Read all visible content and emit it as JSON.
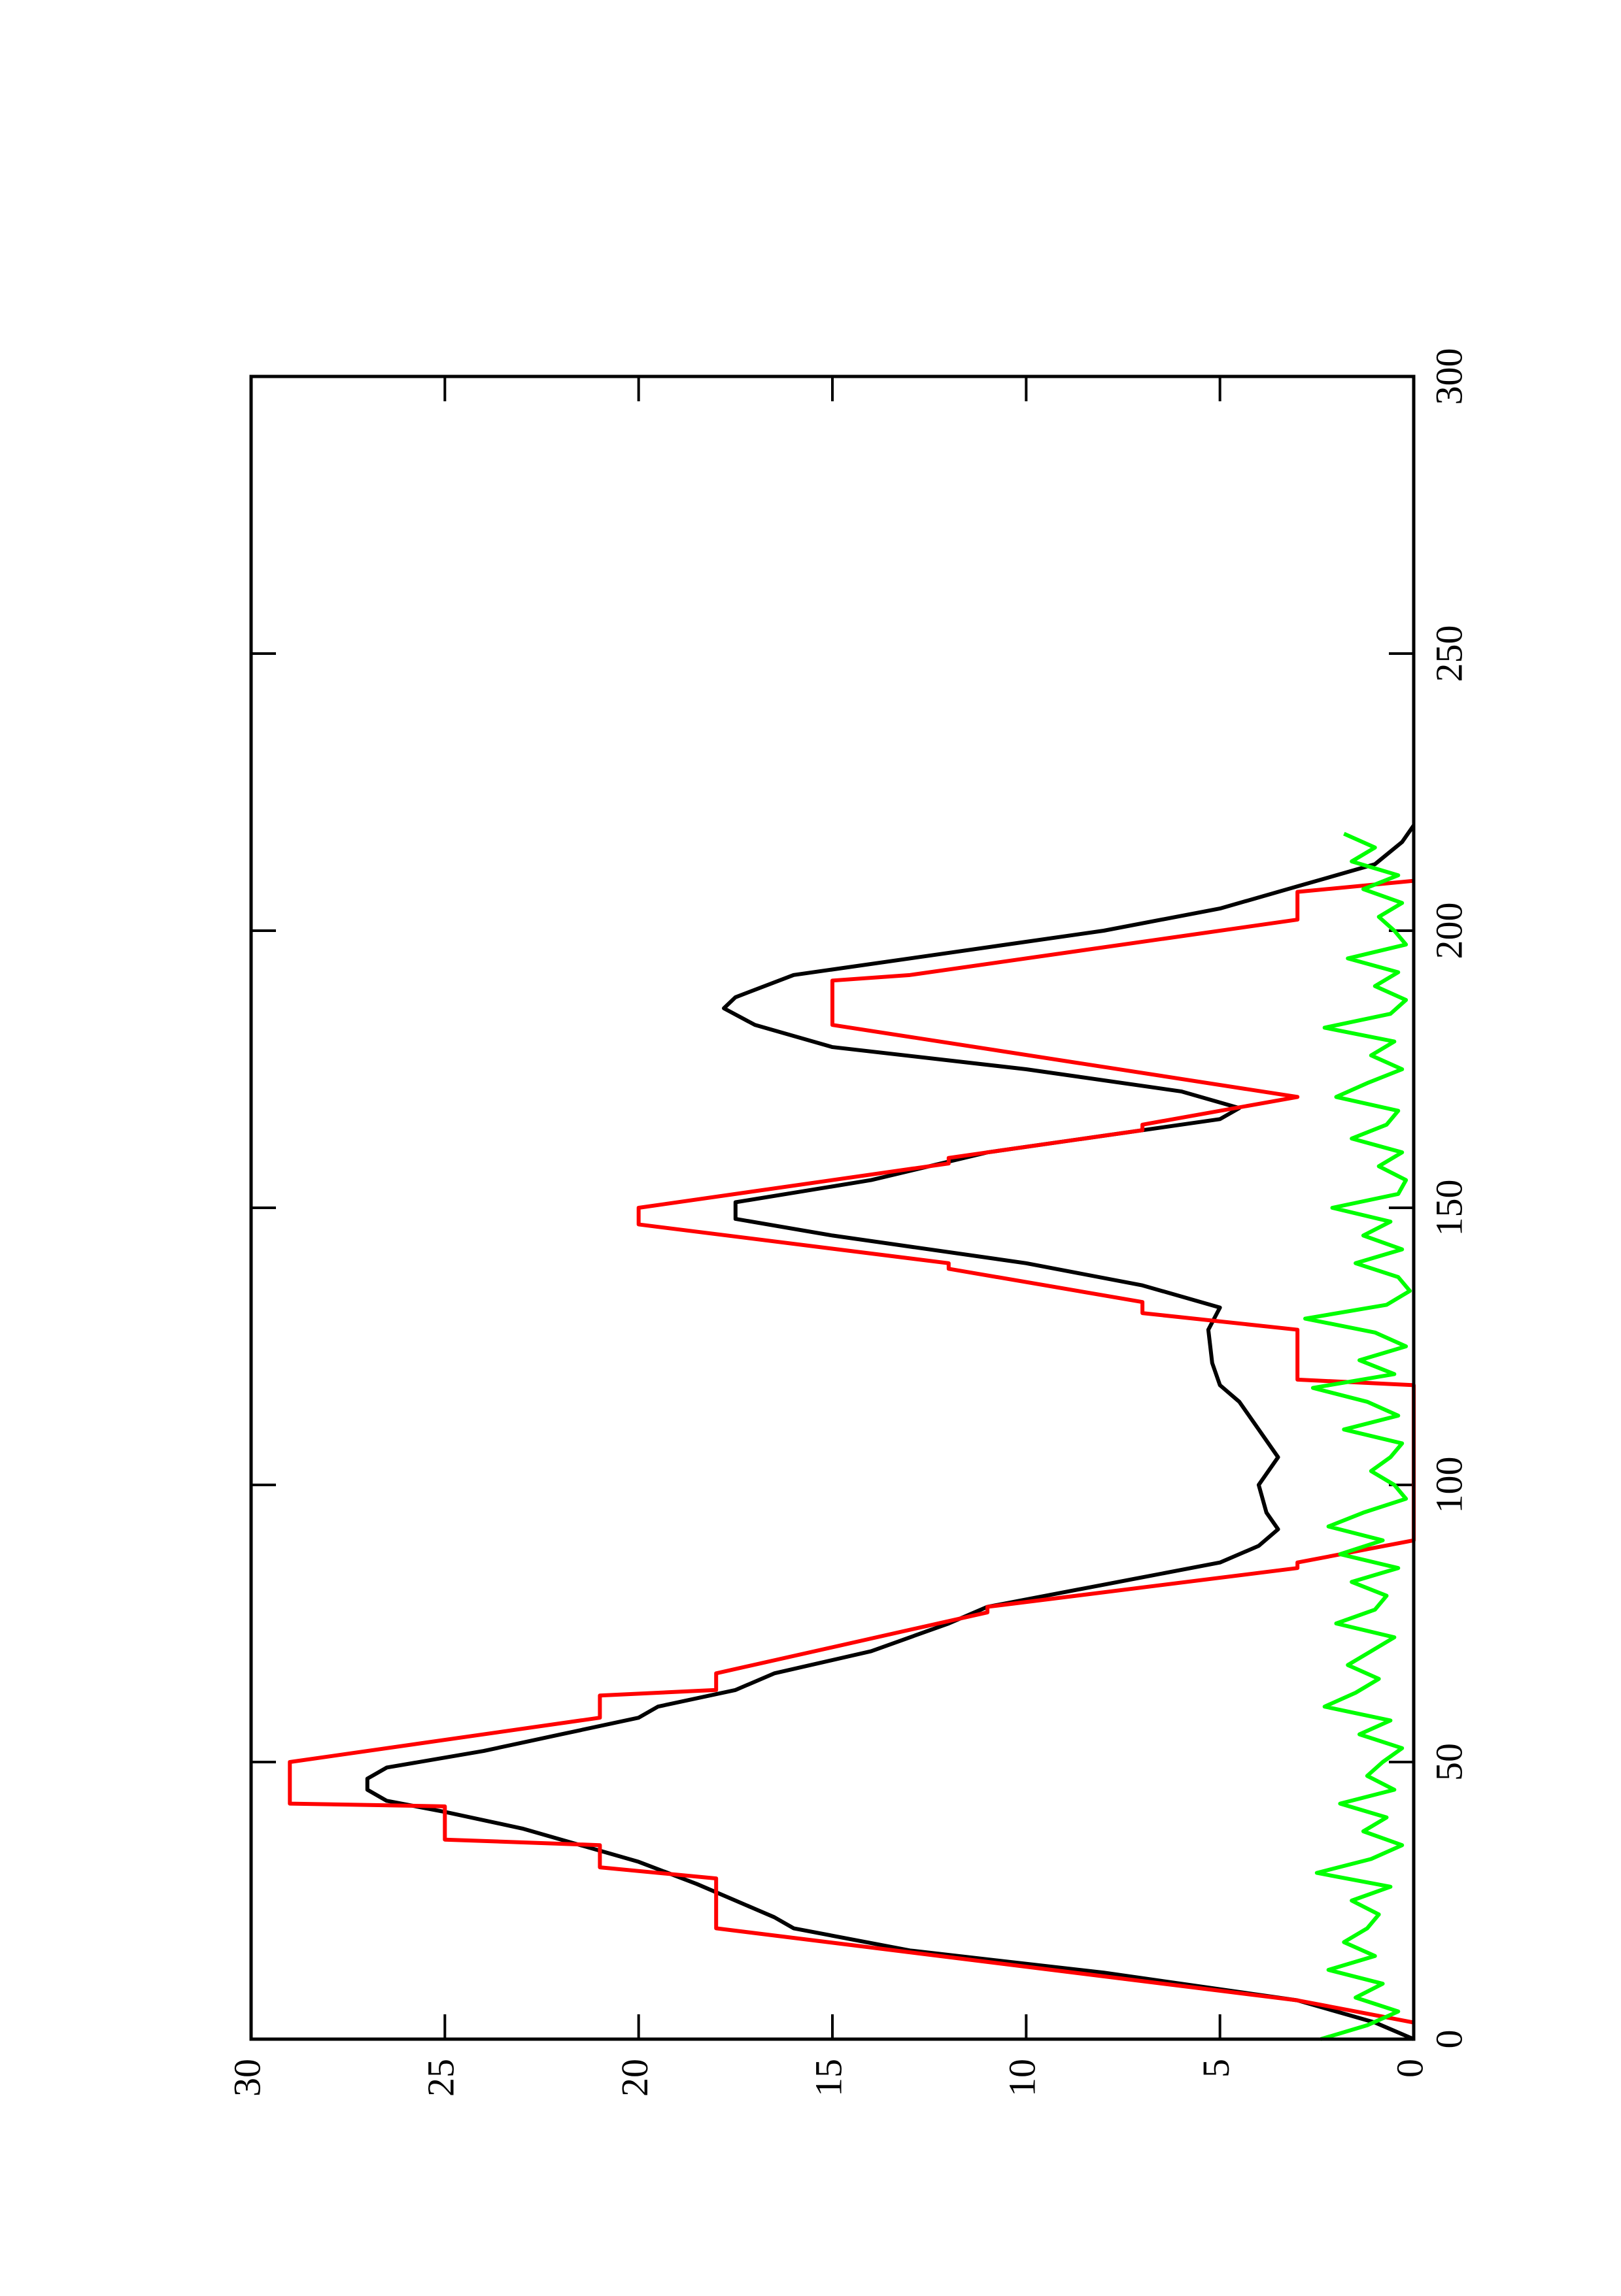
{
  "chart_data": {
    "type": "line",
    "xlim": [
      0,
      300
    ],
    "ylim": [
      0,
      30
    ],
    "xticks": [
      0,
      50,
      100,
      150,
      200,
      250,
      300
    ],
    "yticks": [
      0,
      5,
      10,
      15,
      20,
      25,
      30
    ],
    "series": [
      {
        "color": "#000000",
        "x": [
          0,
          3,
          7,
          12,
          16,
          20,
          22,
          25,
          28,
          32,
          35,
          38,
          41,
          43,
          45,
          47,
          49,
          52,
          55,
          58,
          60,
          63,
          66,
          70,
          75,
          78,
          82,
          86,
          89,
          92,
          95,
          100,
          105,
          110,
          115,
          118,
          122,
          128,
          132,
          136,
          140,
          145,
          148,
          151,
          155,
          160,
          163,
          166,
          168,
          171,
          175,
          179,
          183,
          186,
          188,
          192,
          196,
          200,
          204,
          208,
          212,
          216,
          219
        ],
        "values": [
          0,
          1,
          3,
          8,
          13,
          16,
          16.5,
          17.5,
          18.5,
          20,
          21.5,
          23,
          25,
          26.5,
          27,
          27,
          26.5,
          24,
          22,
          20,
          19.5,
          17.5,
          16.5,
          14,
          12,
          11,
          8,
          5,
          4,
          3.5,
          3.8,
          4,
          3.5,
          4,
          4.5,
          5,
          5.2,
          5.3,
          5,
          7,
          10,
          15,
          17.5,
          17.5,
          14,
          11,
          8,
          5,
          4.5,
          6,
          10,
          15,
          17,
          17.8,
          17.5,
          16,
          12,
          8,
          5,
          3,
          1,
          0.3,
          0
        ]
      },
      {
        "color": "#ff0000",
        "x": [
          3,
          7,
          20,
          29,
          31,
          35,
          36,
          42,
          42.5,
          50,
          58,
          62,
          63,
          66,
          77,
          78,
          85,
          86,
          90,
          118,
          119,
          128,
          131,
          133,
          139,
          140,
          147,
          150,
          158,
          159,
          164,
          165,
          170,
          183,
          191,
          192,
          202,
          207,
          209
        ],
        "values": [
          0,
          3,
          18,
          18,
          21,
          21,
          25,
          25,
          29,
          29,
          21,
          21,
          18,
          18,
          11,
          11,
          3,
          3,
          0,
          0,
          3,
          3,
          7,
          7,
          12,
          12,
          20,
          20,
          12,
          12,
          7,
          7,
          3,
          15,
          15,
          13,
          3,
          3,
          0
        ]
      },
      {
        "color": "#00ff00",
        "x": [
          0,
          2.5,
          5,
          7.5,
          10,
          12.5,
          15,
          17.5,
          20,
          22.5,
          25,
          27.5,
          30,
          32.5,
          35,
          37.5,
          40,
          42.5,
          45,
          47.5,
          50,
          52.5,
          55,
          57.5,
          60,
          62.5,
          65,
          67.5,
          70,
          72.5,
          75,
          77.5,
          80,
          82.5,
          85,
          87.5,
          90,
          92.5,
          95,
          97.5,
          100,
          102.5,
          105,
          107.5,
          110,
          112.5,
          115,
          117.5,
          120,
          122.5,
          125,
          127.5,
          130,
          132.5,
          135,
          137.5,
          140,
          142.5,
          145,
          147.5,
          150,
          152.5,
          155,
          157.5,
          160,
          162.5,
          165,
          167.5,
          170,
          172.5,
          175,
          177.5,
          180,
          182.5,
          185,
          187.5,
          190,
          192.5,
          195,
          197.5,
          200,
          202.5,
          205,
          207.5,
          210,
          212.5,
          215,
          217.5
        ],
        "values": [
          2.4,
          1.2,
          0.4,
          1.5,
          0.8,
          2.2,
          1.0,
          1.8,
          1.2,
          0.9,
          1.6,
          0.6,
          2.5,
          1.1,
          0.3,
          1.3,
          0.7,
          1.9,
          0.5,
          1.2,
          0.8,
          0.3,
          1.4,
          0.6,
          2.3,
          1.5,
          0.9,
          1.7,
          1.1,
          0.5,
          2.0,
          1.0,
          0.7,
          1.6,
          0.4,
          1.9,
          0.8,
          2.2,
          1.3,
          0.2,
          0.5,
          1.1,
          0.6,
          0.3,
          1.8,
          0.4,
          1.2,
          2.6,
          0.5,
          1.4,
          0.2,
          1.0,
          2.8,
          0.7,
          0.1,
          0.4,
          1.5,
          0.3,
          1.3,
          0.6,
          2.1,
          0.4,
          0.2,
          0.9,
          0.3,
          1.6,
          0.7,
          0.4,
          2.0,
          1.2,
          0.3,
          1.1,
          0.5,
          2.3,
          0.6,
          0.2,
          1.0,
          0.4,
          1.7,
          0.2,
          0.5,
          0.9,
          0.3,
          1.3,
          0.4,
          1.6,
          1.0,
          1.8
        ]
      }
    ]
  }
}
